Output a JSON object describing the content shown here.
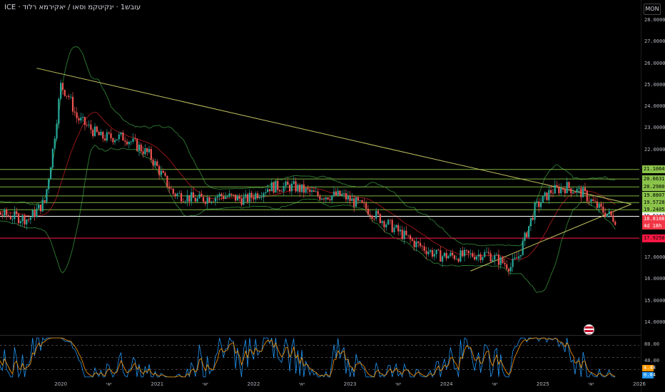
{
  "header": {
    "title": "ICE · עובש1 · ינקיטקמ וסאו / יאקירמא רלוד",
    "unit_label": "MON"
  },
  "colors": {
    "background": "#000000",
    "candle_up": "#26a69a",
    "candle_down": "#ef5350",
    "bollinger_band": "#2e7d32",
    "bollinger_basis": "#b71c1c",
    "trendline": "#c0c060",
    "level_green": "#7cb342",
    "level_white": "#ffffff",
    "level_red": "#ff1744",
    "stoch_k": "#2196f3",
    "stoch_d": "#ff9800"
  },
  "price_axis": {
    "ticks": [
      "28.00000",
      "27.00000",
      "26.00000",
      "25.00000",
      "24.00000",
      "23.00000",
      "22.00000",
      "17.00000",
      "16.00000",
      "15.00000",
      "14.00000"
    ]
  },
  "level_badges": [
    {
      "label": "21.10642",
      "value": 21.10642,
      "bg": "#8bc34a"
    },
    {
      "label": "20.66310",
      "value": 20.6631,
      "bg": "#8bc34a"
    },
    {
      "label": "20.29802",
      "value": 20.29802,
      "bg": "#8bc34a"
    },
    {
      "label": "19.88079",
      "value": 19.88079,
      "bg": "#8bc34a"
    },
    {
      "label": "19.57284",
      "value": 19.57284,
      "bg": "#8bc34a"
    },
    {
      "label": "19.24052",
      "value": 19.24052,
      "bg": "#8bc34a"
    },
    {
      "label": "18.93472",
      "value": 18.93472,
      "bg": "#ffffff"
    },
    {
      "label": "17.92501",
      "value": 17.92501,
      "bg": "#ff1744"
    }
  ],
  "current_price": {
    "label": "18.81080",
    "countdown": "4d 18h",
    "value": 18.8108,
    "bg": "#f23645"
  },
  "oscillator": {
    "ticks": [
      "80.00",
      "40.00"
    ],
    "badge_d": "4.48",
    "badge_k": "0.04"
  },
  "time_axis": {
    "labels": [
      "2020",
      "יאי",
      "2021",
      "יאי",
      "2022",
      "יאי",
      "2023",
      "יאי",
      "2024",
      "יאי",
      "2025",
      "יאי",
      "2026"
    ]
  },
  "chart_data": {
    "type": "candlestick",
    "title": "ICE · עובש1 · ינקיטקמ וסאו / יאקירמא רלוד",
    "y_range": [
      13.6,
      28.3
    ],
    "x_range": [
      "2019-01",
      "2026-01"
    ],
    "horizontal_levels": [
      21.10642,
      20.6631,
      20.29802,
      19.88079,
      19.57284,
      19.24052,
      18.93472,
      17.92501
    ],
    "trendlines": [
      {
        "from": {
          "x": "2019-10",
          "y": 25.8
        },
        "to": {
          "x": "2025-12",
          "y": 19.5
        }
      },
      {
        "from": {
          "x": "2024-04",
          "y": 16.4
        },
        "to": {
          "x": "2025-12",
          "y": 19.5
        }
      }
    ],
    "closes": [
      {
        "x": "2019-01",
        "y": 19.4
      },
      {
        "x": "2019-03",
        "y": 19.2
      },
      {
        "x": "2019-06",
        "y": 19.0
      },
      {
        "x": "2019-09",
        "y": 18.8
      },
      {
        "x": "2019-11",
        "y": 19.6
      },
      {
        "x": "2019-12",
        "y": 22.0
      },
      {
        "x": "2020-01",
        "y": 25.0
      },
      {
        "x": "2020-02",
        "y": 24.5
      },
      {
        "x": "2020-03",
        "y": 23.5
      },
      {
        "x": "2020-06",
        "y": 22.6
      },
      {
        "x": "2020-09",
        "y": 22.6
      },
      {
        "x": "2020-12",
        "y": 21.8
      },
      {
        "x": "2021-03",
        "y": 20.0
      },
      {
        "x": "2021-06",
        "y": 19.7
      },
      {
        "x": "2021-09",
        "y": 19.9
      },
      {
        "x": "2021-12",
        "y": 19.7
      },
      {
        "x": "2022-03",
        "y": 20.3
      },
      {
        "x": "2022-06",
        "y": 20.3
      },
      {
        "x": "2022-09",
        "y": 19.9
      },
      {
        "x": "2022-12",
        "y": 19.9
      },
      {
        "x": "2023-03",
        "y": 19.3
      },
      {
        "x": "2023-06",
        "y": 18.5
      },
      {
        "x": "2023-09",
        "y": 17.7
      },
      {
        "x": "2023-12",
        "y": 17.1
      },
      {
        "x": "2024-03",
        "y": 17.1
      },
      {
        "x": "2024-06",
        "y": 17.2
      },
      {
        "x": "2024-09",
        "y": 16.6
      },
      {
        "x": "2024-10",
        "y": 17.1
      },
      {
        "x": "2024-12",
        "y": 19.3
      },
      {
        "x": "2025-02",
        "y": 20.1
      },
      {
        "x": "2025-04",
        "y": 20.3
      },
      {
        "x": "2025-06",
        "y": 20.0
      },
      {
        "x": "2025-08",
        "y": 19.3
      },
      {
        "x": "2025-10",
        "y": 18.8
      }
    ]
  }
}
